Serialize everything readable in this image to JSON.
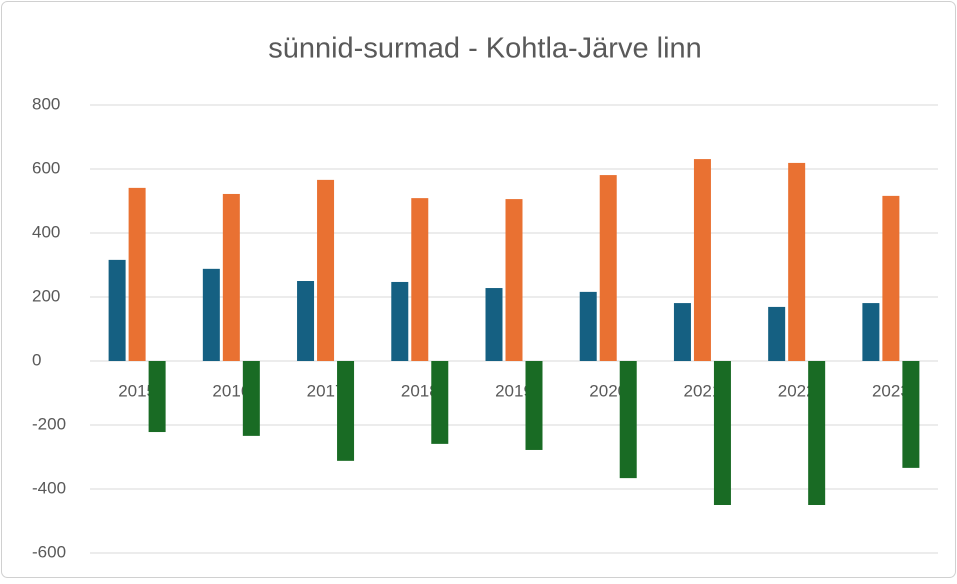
{
  "chart_data": {
    "type": "bar",
    "title": "sünnid-surmad - Kohtla-Järve linn",
    "categories": [
      "2015",
      "2016",
      "2017",
      "2018",
      "2019",
      "2020",
      "2021",
      "2022",
      "2023"
    ],
    "series": [
      {
        "color": "#156082",
        "values": [
          316,
          288,
          250,
          247,
          228,
          216,
          181,
          169,
          181
        ]
      },
      {
        "color": "#e97132",
        "values": [
          541,
          522,
          566,
          509,
          506,
          581,
          631,
          619,
          516
        ]
      },
      {
        "color": "#196b24",
        "values": [
          -222,
          -234,
          -312,
          -259,
          -278,
          -366,
          -450,
          -450,
          -334
        ]
      }
    ],
    "ylim": [
      -650,
      850
    ],
    "yticks": [
      -600,
      -400,
      -200,
      0,
      200,
      400,
      600,
      800
    ],
    "grid": true
  }
}
